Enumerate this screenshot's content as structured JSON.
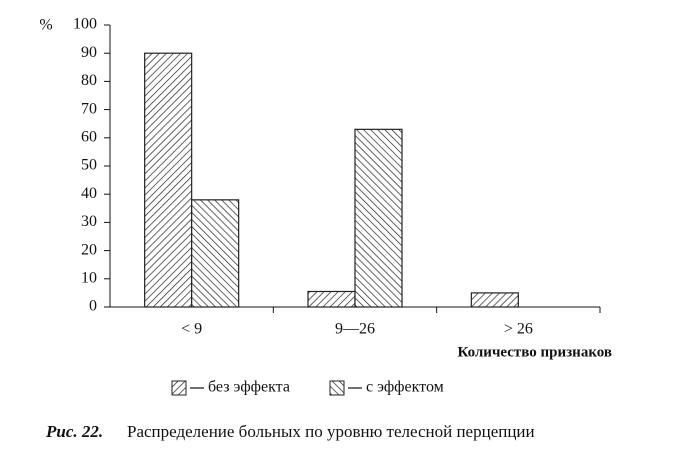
{
  "chart_data": {
    "type": "bar",
    "y_unit": "%",
    "x_label": "Количество признаков",
    "figure_label": "Рис. 22.",
    "caption": "Распределение больных по уровню телесной перцепции",
    "categories": [
      "< 9",
      "9—26",
      "> 26"
    ],
    "series": [
      {
        "name": "без эффекта",
        "color": "#222222",
        "hatch": "/",
        "values": [
          90,
          5.5,
          5
        ]
      },
      {
        "name": "с эффектом",
        "color": "#222222",
        "hatch": "\\",
        "values": [
          38,
          63,
          0
        ]
      }
    ],
    "ylim": [
      0,
      100
    ],
    "yticks": [
      0,
      10,
      20,
      30,
      40,
      50,
      60,
      70,
      80,
      90,
      100
    ],
    "grid": false,
    "legend": "bottom"
  }
}
